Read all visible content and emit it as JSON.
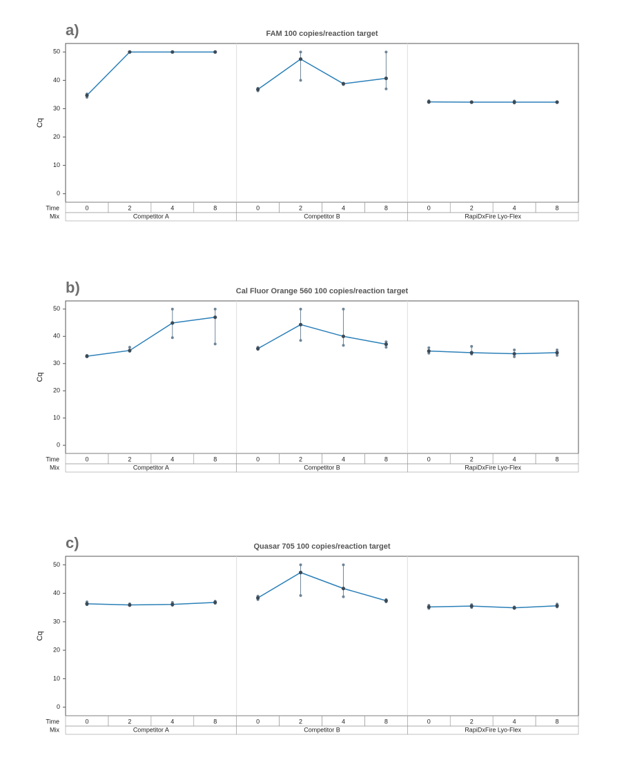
{
  "chart_data": [
    {
      "type": "line",
      "panel_label": "a)",
      "title": "FAM 100 copies/reaction target",
      "ylabel": "Cq",
      "row_labels": [
        "Time",
        "Mix"
      ],
      "categories": [
        "0",
        "2",
        "4",
        "8",
        "0",
        "2",
        "4",
        "8",
        "0",
        "2",
        "4",
        "8"
      ],
      "groups": [
        "Competitor A",
        "Competitor B",
        "RapiDxFire Lyo-Flex"
      ],
      "ylim": [
        -3,
        53
      ],
      "yticks": [
        0,
        10,
        20,
        30,
        40,
        50
      ],
      "series": [
        {
          "color": "#2a7fb8",
          "point_color": "#6f8597",
          "values": [
            34.7,
            50,
            50,
            50,
            36.8,
            47.5,
            38.8,
            40.7,
            32.4,
            32.3,
            32.3,
            32.3
          ],
          "low": [
            34,
            50,
            50,
            50,
            36.3,
            40,
            38.5,
            37,
            32.2,
            32.2,
            32,
            32.2
          ],
          "high": [
            35.2,
            50,
            50,
            50,
            37.2,
            50,
            39,
            50,
            32.8,
            32.4,
            32.7,
            32.4
          ]
        }
      ]
    },
    {
      "type": "line",
      "panel_label": "b)",
      "title": "Cal Fluor Orange 560 100 copies/reaction target",
      "ylabel": "Cq",
      "row_labels": [
        "Time",
        "Mix"
      ],
      "categories": [
        "0",
        "2",
        "4",
        "8",
        "0",
        "2",
        "4",
        "8",
        "0",
        "2",
        "4",
        "8"
      ],
      "groups": [
        "Competitor A",
        "Competitor B",
        "RapiDxFire Lyo-Flex"
      ],
      "ylim": [
        -3,
        53
      ],
      "yticks": [
        0,
        10,
        20,
        30,
        40,
        50
      ],
      "series": [
        {
          "color": "#2a7fb8",
          "point_color": "#6f8597",
          "values": [
            32.7,
            34.8,
            44.9,
            47,
            35.5,
            44.3,
            40,
            37.1,
            34.6,
            34,
            33.6,
            34
          ],
          "low": [
            32.5,
            34.5,
            39.5,
            37.2,
            35.2,
            38.5,
            36.7,
            36,
            33.8,
            33.5,
            32.5,
            33
          ],
          "high": [
            33,
            36,
            50,
            50,
            36,
            50,
            50,
            38,
            35.8,
            36.3,
            35,
            35
          ]
        }
      ]
    },
    {
      "type": "line",
      "panel_label": "c)",
      "title": "Quasar 705 100 copies/reaction target",
      "ylabel": "Cq",
      "row_labels": [
        "Time",
        "Mix"
      ],
      "categories": [
        "0",
        "2",
        "4",
        "8",
        "0",
        "2",
        "4",
        "8",
        "0",
        "2",
        "4",
        "8"
      ],
      "groups": [
        "Competitor A",
        "Competitor B",
        "RapiDxFire Lyo-Flex"
      ],
      "ylim": [
        -3,
        53
      ],
      "yticks": [
        0,
        10,
        20,
        30,
        40,
        50
      ],
      "series": [
        {
          "color": "#2a7fb8",
          "point_color": "#6f8597",
          "values": [
            36.3,
            35.9,
            36.1,
            36.8,
            38.4,
            47.3,
            41.7,
            37.4,
            35.2,
            35.5,
            34.9,
            35.6
          ],
          "low": [
            36,
            35.7,
            35.8,
            36.5,
            37.8,
            39.2,
            38.8,
            37,
            34.7,
            35,
            34.7,
            35.2
          ],
          "high": [
            37,
            36.3,
            36.8,
            37.2,
            39,
            50,
            50,
            37.8,
            35.8,
            36,
            35.2,
            36.2
          ]
        }
      ]
    }
  ]
}
